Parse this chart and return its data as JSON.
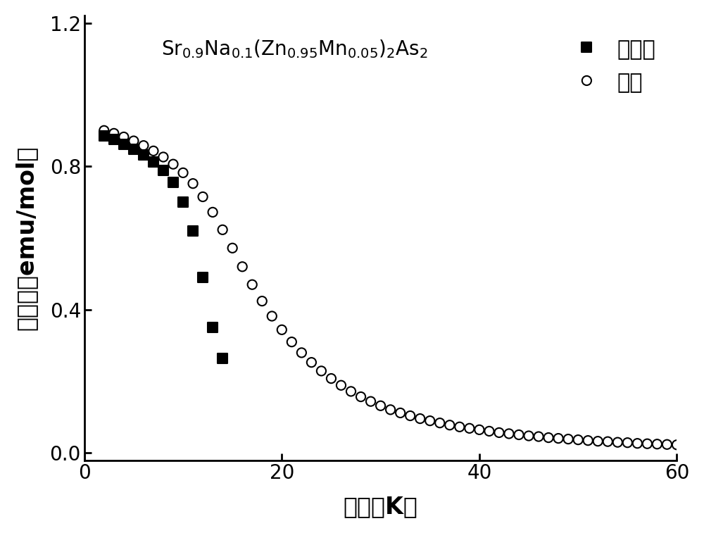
{
  "xlabel": "温度（K）",
  "ylabel": "磁化率（emu/mol）",
  "xlim": [
    0,
    60
  ],
  "ylim": [
    -0.02,
    1.22
  ],
  "yticks": [
    0.0,
    0.4,
    0.8,
    1.2
  ],
  "xticks": [
    0,
    20,
    40,
    60
  ],
  "legend_zfc": "零场冷",
  "legend_fc": "场冷",
  "background": "#ffffff",
  "zfc_color": "black",
  "fc_color": "black",
  "zfc_T": [
    2,
    3,
    4,
    5,
    6,
    7,
    8,
    9,
    10,
    11,
    12,
    13,
    14
  ],
  "zfc_M": [
    0.885,
    0.875,
    0.862,
    0.848,
    0.832,
    0.812,
    0.788,
    0.755,
    0.7,
    0.62,
    0.49,
    0.35,
    0.265
  ],
  "fc_T": [
    2,
    3,
    4,
    5,
    6,
    7,
    8,
    9,
    10,
    11,
    12,
    13,
    14,
    15,
    16,
    17,
    18,
    19,
    20,
    21,
    22,
    23,
    24,
    25,
    26,
    27,
    28,
    29,
    30,
    31,
    32,
    33,
    34,
    35,
    36,
    37,
    38,
    39,
    40,
    41,
    42,
    43,
    44,
    45,
    46,
    47,
    48,
    49,
    50,
    51,
    52,
    53,
    54,
    55,
    56,
    57,
    58,
    59,
    60
  ],
  "fc_M": [
    0.9,
    0.892,
    0.882,
    0.871,
    0.858,
    0.843,
    0.826,
    0.806,
    0.782,
    0.752,
    0.715,
    0.672,
    0.623,
    0.572,
    0.52,
    0.47,
    0.424,
    0.382,
    0.344,
    0.31,
    0.28,
    0.253,
    0.229,
    0.208,
    0.189,
    0.172,
    0.157,
    0.144,
    0.132,
    0.121,
    0.112,
    0.104,
    0.096,
    0.09,
    0.084,
    0.078,
    0.073,
    0.069,
    0.065,
    0.061,
    0.057,
    0.054,
    0.051,
    0.048,
    0.046,
    0.043,
    0.041,
    0.039,
    0.037,
    0.035,
    0.033,
    0.032,
    0.03,
    0.029,
    0.027,
    0.026,
    0.025,
    0.024,
    0.023
  ]
}
